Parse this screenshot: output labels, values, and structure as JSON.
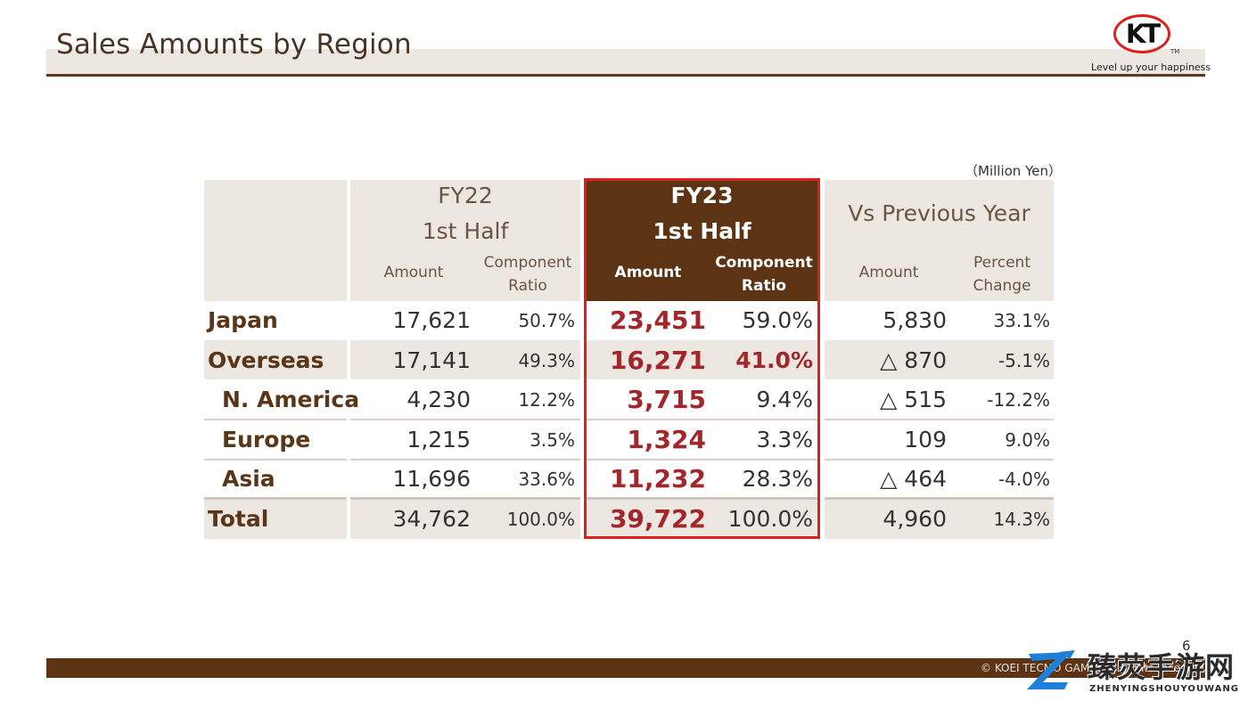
{
  "header": {
    "title": "Sales Amounts by Region",
    "logo_text": "KT",
    "logo_tm": "TM",
    "tagline": "Level up your happiness"
  },
  "table": {
    "unit_note": "（Million Yen）",
    "columns": {
      "fy22": {
        "year": "FY22",
        "half": "1st Half",
        "amount": "Amount",
        "ratio_1": "Component",
        "ratio_2": "Ratio"
      },
      "fy23": {
        "year": "FY23",
        "half": "1st Half",
        "amount": "Amount",
        "ratio_1": "Component",
        "ratio_2": "Ratio"
      },
      "vs": {
        "title": "Vs Previous Year",
        "amount": "Amount",
        "pct_1": "Percent",
        "pct_2": "Change"
      }
    },
    "rows": [
      {
        "region": "Japan",
        "fy22_amount": "17,621",
        "fy22_ratio": "50.7%",
        "fy23_amount": "23,451",
        "fy23_ratio": "59.0%",
        "vs_amount": "5,830",
        "vs_pct": "33.1%"
      },
      {
        "region": "Overseas",
        "fy22_amount": "17,141",
        "fy22_ratio": "49.3%",
        "fy23_amount": "16,271",
        "fy23_ratio": "41.0%",
        "vs_amount": "△ 870",
        "vs_pct": "-5.1%"
      },
      {
        "region": "N. America",
        "fy22_amount": "4,230",
        "fy22_ratio": "12.2%",
        "fy23_amount": "3,715",
        "fy23_ratio": "9.4%",
        "vs_amount": "△ 515",
        "vs_pct": "-12.2%"
      },
      {
        "region": "Europe",
        "fy22_amount": "1,215",
        "fy22_ratio": "3.5%",
        "fy23_amount": "1,324",
        "fy23_ratio": "3.3%",
        "vs_amount": "109",
        "vs_pct": "9.0%"
      },
      {
        "region": "Asia",
        "fy22_amount": "11,696",
        "fy22_ratio": "33.6%",
        "fy23_amount": "11,232",
        "fy23_ratio": "28.3%",
        "vs_amount": "△ 464",
        "vs_pct": "-4.0%"
      },
      {
        "region": "Total",
        "fy22_amount": "34,762",
        "fy22_ratio": "100.0%",
        "fy23_amount": "39,722",
        "fy23_ratio": "100.0%",
        "vs_amount": "4,960",
        "vs_pct": "14.3%"
      }
    ]
  },
  "footer": {
    "page_number": "6",
    "copyright": "© KOEI TECMO GAMES All rights reserved.",
    "watermark_cn": "臻荧手游网",
    "watermark_en": "ZHENYINGSHOUYOUWANG"
  },
  "colors": {
    "brand_brown": "#5c3313",
    "highlight_red": "#e01e1e",
    "number_red": "#a3262a",
    "band_beige": "#ede7e2"
  }
}
